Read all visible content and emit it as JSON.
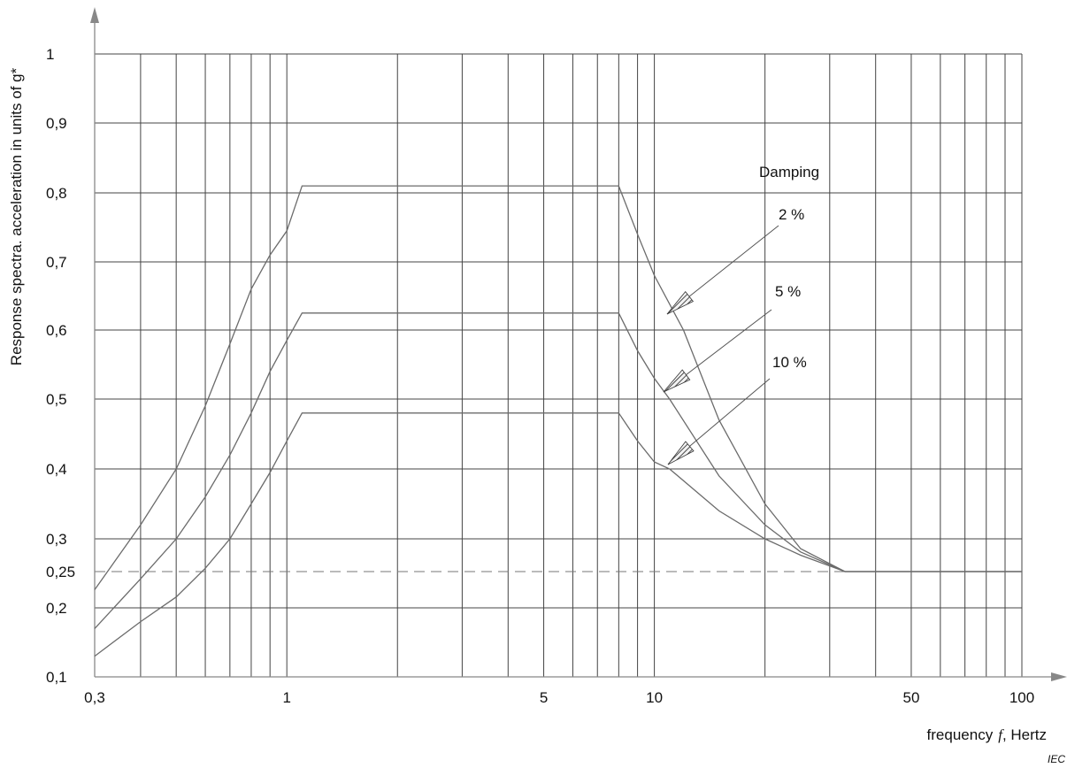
{
  "chart_data": {
    "type": "line",
    "x_scale": "log",
    "y_scale": "nonlinear (printed tick labels)",
    "xlim": [
      0.3,
      100
    ],
    "ylim": [
      0.1,
      1
    ],
    "grid": true,
    "xlabel_parts": [
      "frequency",
      "f",
      ",  Hertz"
    ],
    "ylabel": "Response spectra.  acceleration in units of g*",
    "source": "IEC",
    "x_tick_labels": [
      {
        "value": 0.3,
        "label": "0,3"
      },
      {
        "value": 1,
        "label": "1"
      },
      {
        "value": 5,
        "label": "5"
      },
      {
        "value": 10,
        "label": "10"
      },
      {
        "value": 50,
        "label": "50"
      },
      {
        "value": 100,
        "label": "100"
      }
    ],
    "x_grid": [
      0.4,
      0.5,
      0.6,
      0.7,
      0.8,
      0.9,
      1,
      2,
      3,
      4,
      5,
      6,
      7,
      8,
      9,
      10,
      20,
      30,
      40,
      50,
      60,
      70,
      80,
      90,
      100
    ],
    "y_ticks": [
      {
        "value": 0.1,
        "label": "0,1"
      },
      {
        "value": 0.2,
        "label": "0,2"
      },
      {
        "value": 0.25,
        "label": "0,25"
      },
      {
        "value": 0.3,
        "label": "0,3"
      },
      {
        "value": 0.4,
        "label": "0,4"
      },
      {
        "value": 0.5,
        "label": "0,5"
      },
      {
        "value": 0.6,
        "label": "0,6"
      },
      {
        "value": 0.7,
        "label": "0,7"
      },
      {
        "value": 0.8,
        "label": "0,8"
      },
      {
        "value": 0.9,
        "label": "0,9"
      },
      {
        "value": 1,
        "label": "1"
      }
    ],
    "reference_line": {
      "y": 0.25,
      "style": "dashed"
    },
    "legend_title": "Damping",
    "series": [
      {
        "name": "2 %",
        "points": [
          [
            0.3,
            0.225
          ],
          [
            0.4,
            0.32
          ],
          [
            0.5,
            0.4
          ],
          [
            0.6,
            0.49
          ],
          [
            0.7,
            0.58
          ],
          [
            0.8,
            0.66
          ],
          [
            0.9,
            0.71
          ],
          [
            1.0,
            0.745
          ],
          [
            1.1,
            0.81
          ],
          [
            8.0,
            0.81
          ],
          [
            9.0,
            0.74
          ],
          [
            10.0,
            0.68
          ],
          [
            12.0,
            0.6
          ],
          [
            15.0,
            0.47
          ],
          [
            20.0,
            0.35
          ],
          [
            25.0,
            0.285
          ],
          [
            33.0,
            0.25
          ],
          [
            100.0,
            0.25
          ]
        ]
      },
      {
        "name": "5 %",
        "points": [
          [
            0.3,
            0.17
          ],
          [
            0.4,
            0.24
          ],
          [
            0.5,
            0.3
          ],
          [
            0.6,
            0.36
          ],
          [
            0.7,
            0.42
          ],
          [
            0.8,
            0.48
          ],
          [
            0.9,
            0.54
          ],
          [
            1.0,
            0.585
          ],
          [
            1.1,
            0.625
          ],
          [
            8.0,
            0.625
          ],
          [
            9.0,
            0.57
          ],
          [
            10.0,
            0.53
          ],
          [
            11.0,
            0.5
          ],
          [
            15.0,
            0.39
          ],
          [
            20.0,
            0.32
          ],
          [
            25.0,
            0.28
          ],
          [
            33.0,
            0.25
          ],
          [
            100.0,
            0.25
          ]
        ]
      },
      {
        "name": "10 %",
        "points": [
          [
            0.3,
            0.13
          ],
          [
            0.4,
            0.18
          ],
          [
            0.5,
            0.215
          ],
          [
            0.6,
            0.255
          ],
          [
            0.7,
            0.3
          ],
          [
            0.8,
            0.35
          ],
          [
            0.9,
            0.395
          ],
          [
            1.0,
            0.44
          ],
          [
            1.1,
            0.48
          ],
          [
            8.0,
            0.48
          ],
          [
            9.0,
            0.44
          ],
          [
            10.0,
            0.41
          ],
          [
            11.0,
            0.4
          ],
          [
            15.0,
            0.34
          ],
          [
            20.0,
            0.3
          ],
          [
            25.0,
            0.275
          ],
          [
            33.0,
            0.25
          ],
          [
            100.0,
            0.25
          ]
        ]
      }
    ]
  }
}
